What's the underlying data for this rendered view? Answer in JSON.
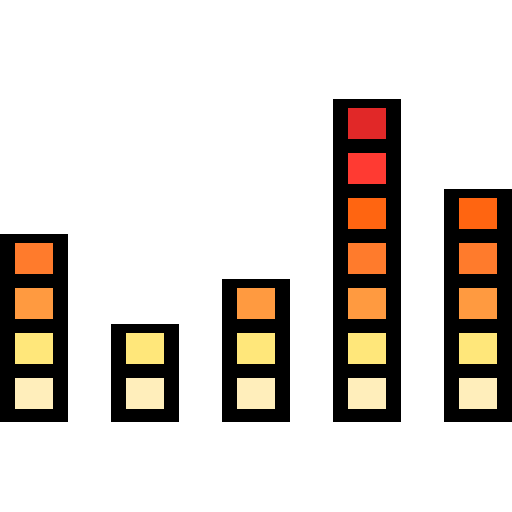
{
  "icon": {
    "name": "equalizer-bars-icon",
    "outline_color": "#000000",
    "background_color": "#ffffff"
  },
  "segment_palette": [
    "#FFEEBB",
    "#FFE77A",
    "#FF9A40",
    "#FF7B2C",
    "#FF6511",
    "#FF3A32",
    "#E12828"
  ],
  "bars": [
    {
      "name": "bar-1",
      "segments": 4
    },
    {
      "name": "bar-2",
      "segments": 2
    },
    {
      "name": "bar-3",
      "segments": 3
    },
    {
      "name": "bar-4",
      "segments": 7
    },
    {
      "name": "bar-5",
      "segments": 5
    }
  ]
}
